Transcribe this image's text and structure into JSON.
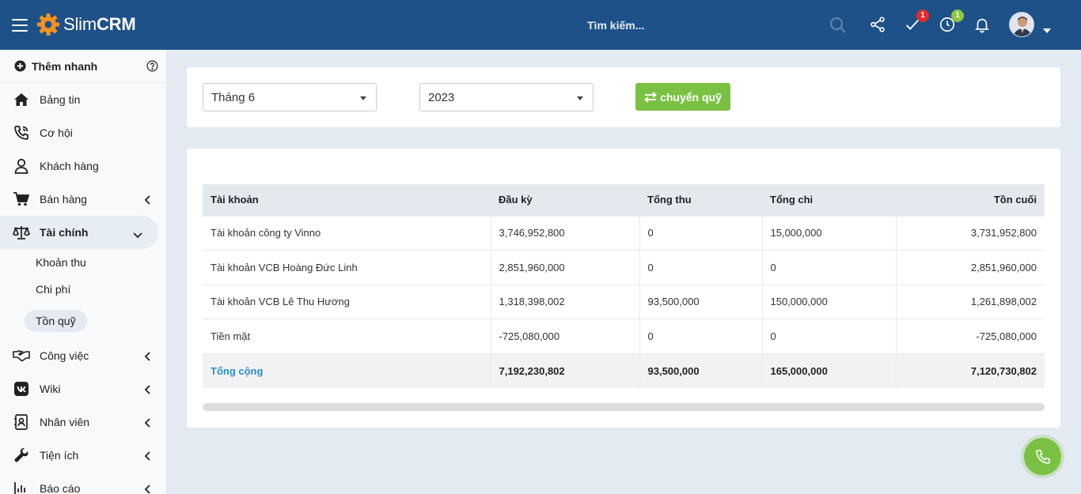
{
  "header": {
    "brand_light": "Slim",
    "brand_bold": "CRM",
    "search_placeholder": "Tìm kiếm...",
    "tasks_badge": "1",
    "timer_badge": "1",
    "colors": {
      "bar": "#1e5188",
      "accent": "#f7931e"
    }
  },
  "sidebar": {
    "quick_add": "Thêm nhanh",
    "items": [
      {
        "label": "Bảng tin",
        "icon": "home-icon"
      },
      {
        "label": "Cơ hội",
        "icon": "phone-volume-icon"
      },
      {
        "label": "Khách hàng",
        "icon": "user-icon"
      },
      {
        "label": "Bán hàng",
        "icon": "cart-icon"
      },
      {
        "label": "Tài chính",
        "icon": "balance-scale-icon"
      },
      {
        "label": "Công việc",
        "icon": "handshake-icon"
      },
      {
        "label": "Wiki",
        "icon": "vk-icon"
      },
      {
        "label": "Nhân viên",
        "icon": "contact-card-icon"
      },
      {
        "label": "Tiện ích",
        "icon": "wrench-icon"
      },
      {
        "label": "Báo cáo",
        "icon": "bar-chart-icon"
      }
    ],
    "finance_sub": [
      "Khoản thu",
      "Chi phí",
      "Tồn quỹ"
    ]
  },
  "filters": {
    "month": "Tháng 6",
    "year": "2023",
    "transfer_button": "chuyển quỹ"
  },
  "table": {
    "headers": [
      "Tài khoản",
      "Đầu kỳ",
      "Tổng thu",
      "Tổng chi",
      "Tồn cuối"
    ],
    "rows": [
      [
        "Tài khoản công ty Vinno",
        "3,746,952,800",
        "0",
        "15,000,000",
        "3,731,952,800"
      ],
      [
        "Tài khoản VCB Hoàng Đức Linh",
        "2,851,960,000",
        "0",
        "0",
        "2,851,960,000"
      ],
      [
        "Tài khoản VCB Lê Thu Hương",
        "1,318,398,002",
        "93,500,000",
        "150,000,000",
        "1,261,898,002"
      ],
      [
        "Tiền mặt",
        "-725,080,000",
        "0",
        "0",
        "-725,080,000"
      ]
    ],
    "total": [
      "Tổng cộng",
      "7,192,230,802",
      "93,500,000",
      "165,000,000",
      "7,120,730,802"
    ]
  }
}
